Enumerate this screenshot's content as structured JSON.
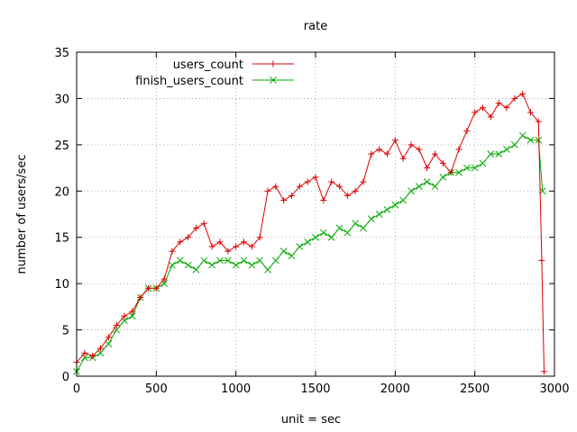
{
  "chart_data": {
    "type": "line",
    "title": "rate",
    "xlabel": "unit = sec",
    "ylabel": "number of users/sec",
    "xlim": [
      0,
      3000
    ],
    "ylim": [
      0,
      35
    ],
    "xticks": [
      0,
      500,
      1000,
      1500,
      2000,
      2500,
      3000
    ],
    "yticks": [
      0,
      5,
      10,
      15,
      20,
      25,
      30,
      35
    ],
    "grid": true,
    "legend_position": "top-left",
    "series": [
      {
        "name": "users_count",
        "color": "#dd0000",
        "marker": "plus",
        "x": [
          0,
          50,
          100,
          150,
          200,
          250,
          300,
          350,
          400,
          450,
          500,
          550,
          600,
          650,
          700,
          750,
          800,
          850,
          900,
          950,
          1000,
          1050,
          1100,
          1150,
          1200,
          1250,
          1300,
          1350,
          1400,
          1450,
          1500,
          1550,
          1600,
          1650,
          1700,
          1750,
          1800,
          1850,
          1900,
          1950,
          2000,
          2050,
          2100,
          2150,
          2200,
          2250,
          2300,
          2350,
          2400,
          2450,
          2500,
          2550,
          2600,
          2650,
          2700,
          2750,
          2800,
          2850,
          2900,
          2920,
          2935
        ],
        "values": [
          1.5,
          2.5,
          2.2,
          3.0,
          4.2,
          5.5,
          6.5,
          7.0,
          8.5,
          9.5,
          9.5,
          10.5,
          13.5,
          14.5,
          15.0,
          16.0,
          16.5,
          14.0,
          14.5,
          13.5,
          14.0,
          14.5,
          14.0,
          15.0,
          20.0,
          20.5,
          19.0,
          19.5,
          20.5,
          21.0,
          21.5,
          19.0,
          21.0,
          20.5,
          19.5,
          20.0,
          21.0,
          24.0,
          24.5,
          24.0,
          25.5,
          23.5,
          25.0,
          24.5,
          22.5,
          24.0,
          23.0,
          22.0,
          24.5,
          26.5,
          28.5,
          29.0,
          28.0,
          29.5,
          29.0,
          30.0,
          30.5,
          28.5,
          27.5,
          12.5,
          0.5
        ]
      },
      {
        "name": "finish_users_count",
        "color": "#00aa00",
        "marker": "cross",
        "x": [
          0,
          50,
          100,
          150,
          200,
          250,
          300,
          350,
          400,
          450,
          500,
          550,
          600,
          650,
          700,
          750,
          800,
          850,
          900,
          950,
          1000,
          1050,
          1100,
          1150,
          1200,
          1250,
          1300,
          1350,
          1400,
          1450,
          1500,
          1550,
          1600,
          1650,
          1700,
          1750,
          1800,
          1850,
          1900,
          1950,
          2000,
          2050,
          2100,
          2150,
          2200,
          2250,
          2300,
          2350,
          2400,
          2450,
          2500,
          2550,
          2600,
          2650,
          2700,
          2750,
          2800,
          2850,
          2900,
          2925
        ],
        "values": [
          0.5,
          2.0,
          2.0,
          2.5,
          3.5,
          5.0,
          6.0,
          6.5,
          8.5,
          9.5,
          9.5,
          10.0,
          12.0,
          12.5,
          12.0,
          11.5,
          12.5,
          12.0,
          12.5,
          12.5,
          12.0,
          12.5,
          12.0,
          12.5,
          11.5,
          12.5,
          13.5,
          13.0,
          14.0,
          14.5,
          15.0,
          15.5,
          15.0,
          16.0,
          15.5,
          16.5,
          16.0,
          17.0,
          17.5,
          18.0,
          18.5,
          19.0,
          20.0,
          20.5,
          21.0,
          20.5,
          21.5,
          22.0,
          22.0,
          22.5,
          22.5,
          23.0,
          24.0,
          24.0,
          24.5,
          25.0,
          26.0,
          25.5,
          25.5,
          20.0
        ]
      }
    ]
  }
}
